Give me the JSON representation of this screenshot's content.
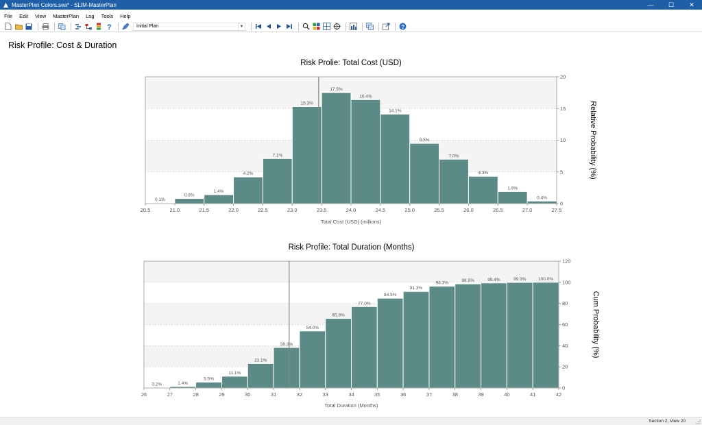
{
  "window": {
    "title": "MasterPlan Colors.sea* - SLIM-MasterPlan",
    "minimize": "—",
    "maximize": "☐",
    "close": "✕"
  },
  "menu": [
    "File",
    "Edit",
    "View",
    "MasterPlan",
    "Log",
    "Tools",
    "Help"
  ],
  "toolbar": {
    "plan_select_value": "Initial Plan",
    "icons": [
      "new-icon",
      "open-icon",
      "save-icon",
      "print-icon",
      "copy-icon",
      "link-icon",
      "tree-icon",
      "bar-icon",
      "help-icon",
      "edit-icon",
      "first-icon",
      "prev-icon",
      "next-icon",
      "last-icon",
      "zoom-icon",
      "grid-icon",
      "layout-icon",
      "target-icon",
      "view-icon",
      "panel-icon",
      "export-icon",
      "info-icon"
    ]
  },
  "page": {
    "title": "Risk Profile:  Cost & Duration"
  },
  "status": {
    "text": "Section 2, View 20"
  },
  "colors": {
    "bar_fill": "#5b8a87",
    "bar_stroke": "#ffffff",
    "band": "#f4f4f4",
    "marker": "#888888",
    "titlebar": "#1f5fa8"
  },
  "chart_data": [
    {
      "type": "bar",
      "title": "Risk Prolie:  Total Cost (USD)",
      "xlabel": "Total Cost (USD) (millions)",
      "ylabel": "Relative Probability (%)",
      "x_ticks": [
        "20.5",
        "21.0",
        "21.5",
        "22.0",
        "22.5",
        "23.0",
        "23.5",
        "24.0",
        "24.5",
        "25.0",
        "25.5",
        "26.0",
        "26.5",
        "27.0",
        "27.5"
      ],
      "y_ticks": [
        "0",
        "5",
        "10",
        "15",
        "20"
      ],
      "xlim": [
        20.5,
        27.5
      ],
      "ylim": [
        0,
        20
      ],
      "y_axis_side": "right",
      "bin_start": [
        20.5,
        21.0,
        21.5,
        22.0,
        22.5,
        23.0,
        23.5,
        24.0,
        24.5,
        25.0,
        25.5,
        26.0,
        26.5,
        27.0
      ],
      "bin_width": 0.5,
      "values": [
        0.1,
        0.8,
        1.4,
        4.2,
        7.1,
        15.3,
        17.5,
        16.4,
        14.1,
        9.5,
        7.0,
        4.3,
        1.9,
        0.4
      ],
      "value_labels": [
        "0.1%",
        "0.8%",
        "1.4%",
        "4.2%",
        "7.1%",
        "15.3%",
        "17.5%",
        "16.4%",
        "14.1%",
        "9.5%",
        "7.0%",
        "4.3%",
        "1.9%",
        "0.4%"
      ],
      "marker_x": 23.45
    },
    {
      "type": "bar",
      "title": "Risk Profile:  Total Duration (Months)",
      "xlabel": "Total Duration (Months)",
      "ylabel": "Cum Probability (%)",
      "x_ticks": [
        "26",
        "27",
        "28",
        "29",
        "30",
        "31",
        "32",
        "33",
        "34",
        "35",
        "36",
        "37",
        "38",
        "39",
        "40",
        "41",
        "42"
      ],
      "y_ticks": [
        "0",
        "20",
        "40",
        "60",
        "80",
        "100",
        "120"
      ],
      "xlim": [
        26,
        42
      ],
      "ylim": [
        0,
        120
      ],
      "y_axis_side": "right",
      "bin_start": [
        26,
        27,
        28,
        29,
        30,
        31,
        32,
        33,
        34,
        35,
        36,
        37,
        38,
        39,
        40,
        41
      ],
      "bin_width": 1,
      "values": [
        0.2,
        1.4,
        5.5,
        11.1,
        23.1,
        38.3,
        54.0,
        65.8,
        77.0,
        84.9,
        91.3,
        96.3,
        98.5,
        99.4,
        99.9,
        100.0
      ],
      "value_labels": [
        "0.2%",
        "1.4%",
        "5.5%",
        "11.1%",
        "23.1%",
        "38.3%",
        "54.0%",
        "65.8%",
        "77.0%",
        "84.9%",
        "91.3%",
        "96.3%",
        "98.5%",
        "99.4%",
        "99.9%",
        "100.0%"
      ],
      "marker_x": 31.6
    }
  ]
}
